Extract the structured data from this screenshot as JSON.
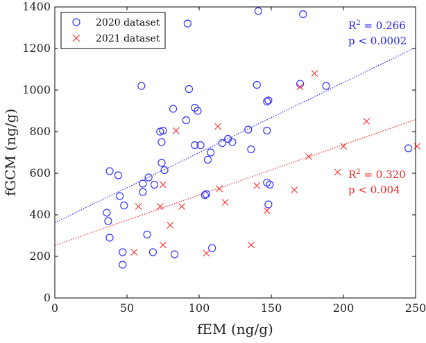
{
  "chart_data": {
    "type": "scatter",
    "xlabel": "fEM (ng/g)",
    "ylabel": "fGCM (ng/g)",
    "xlim": [
      0,
      250
    ],
    "ylim": [
      0,
      1400
    ],
    "xticks": [
      0,
      50,
      100,
      150,
      200,
      250
    ],
    "yticks": [
      0,
      200,
      400,
      600,
      800,
      1000,
      1200,
      1400
    ],
    "legend_position": "top-left",
    "series": [
      {
        "name": "2020 dataset",
        "marker": "circle",
        "color": "#3333ff",
        "fit": {
          "intercept": 362,
          "slope": 3.37,
          "color": "#3333ff"
        },
        "annotation": {
          "r2_prefix": "R",
          "r2_exp": "2",
          "r2_value": " = 0.266",
          "p": "p < 0.0002"
        },
        "x": [
          36,
          37,
          38,
          38,
          44,
          45,
          47,
          47,
          48,
          60,
          61,
          61,
          64,
          65,
          68,
          69,
          73,
          74,
          74,
          75,
          76,
          82,
          83,
          91,
          92,
          93,
          97,
          97,
          99,
          101,
          104,
          105,
          106,
          108,
          109,
          116,
          120,
          123,
          134,
          136,
          140,
          141,
          147,
          147,
          147,
          148,
          148,
          149,
          170,
          172,
          188,
          245
        ],
        "y": [
          410,
          370,
          610,
          290,
          590,
          490,
          160,
          220,
          445,
          1020,
          510,
          550,
          305,
          580,
          220,
          545,
          800,
          750,
          650,
          805,
          615,
          910,
          210,
          855,
          1320,
          1005,
          735,
          915,
          900,
          735,
          495,
          500,
          665,
          700,
          240,
          745,
          765,
          750,
          810,
          715,
          1025,
          1380,
          555,
          945,
          805,
          450,
          950,
          545,
          1030,
          1365,
          1020,
          720
        ]
      },
      {
        "name": "2021 dataset",
        "marker": "cross",
        "color": "#ff3333",
        "fit": {
          "intercept": 253,
          "slope": 2.42,
          "color": "#ff3333"
        },
        "annotation": {
          "r2_prefix": "R",
          "r2_exp": "2",
          "r2_value": " = 0.320",
          "p": "p < 0.004"
        },
        "x": [
          55,
          58,
          73,
          75,
          75,
          80,
          84,
          88,
          105,
          113,
          114,
          118,
          136,
          140,
          147,
          166,
          170,
          176,
          180,
          196,
          200,
          216,
          251
        ],
        "y": [
          220,
          440,
          440,
          255,
          545,
          350,
          805,
          440,
          215,
          825,
          525,
          460,
          255,
          540,
          420,
          520,
          1015,
          680,
          1080,
          605,
          730,
          850,
          730
        ]
      }
    ]
  }
}
